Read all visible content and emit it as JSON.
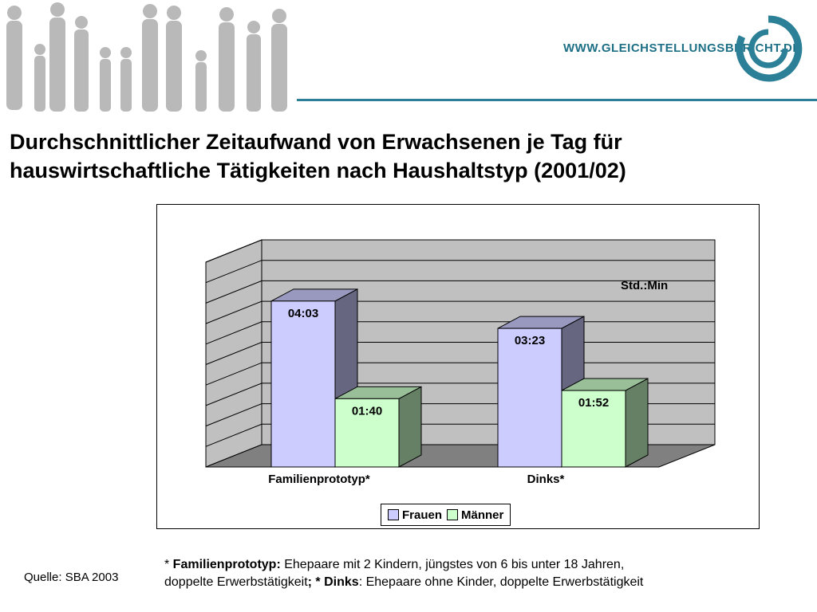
{
  "header": {
    "site_url": "WWW.GLEICHSTELLUNGSBERICHT.DE",
    "accent_color": "#2b7f96"
  },
  "title": "Durchschnittlicher Zeitaufwand von Erwachsenen je Tag für hauswirtschaftliche Tätigkeiten nach Haushaltstyp (2001/02)",
  "chart_data": {
    "type": "bar",
    "style": "3d-clustered-column",
    "categories": [
      "Familienprototyp*",
      "Dinks*"
    ],
    "series": [
      {
        "name": "Frauen",
        "values": [
          "04:03",
          "03:23"
        ],
        "minutes": [
          243,
          203
        ],
        "color": "#ccccff"
      },
      {
        "name": "Männer",
        "values": [
          "01:40",
          "01:52"
        ],
        "minutes": [
          100,
          112
        ],
        "color": "#ccffcc"
      }
    ],
    "unit_label": "Std.:Min",
    "ylim_minutes": [
      0,
      300
    ],
    "grid": true,
    "legend_position": "bottom"
  },
  "footnote": {
    "line1_prefix": "* ",
    "line1_term": "Familienprototyp:",
    "line1_text": " Ehepaare mit 2 Kindern, jüngstes von 6 bis unter 18 Jahren,",
    "line2_text": "doppelte Erwerbstätigkeit",
    "line2_sep": "; * ",
    "line2_term": "Dinks",
    "line2_rest": ": Ehepaare ohne Kinder, doppelte Erwerbstätigkeit"
  },
  "source": "Quelle: SBA 2003"
}
